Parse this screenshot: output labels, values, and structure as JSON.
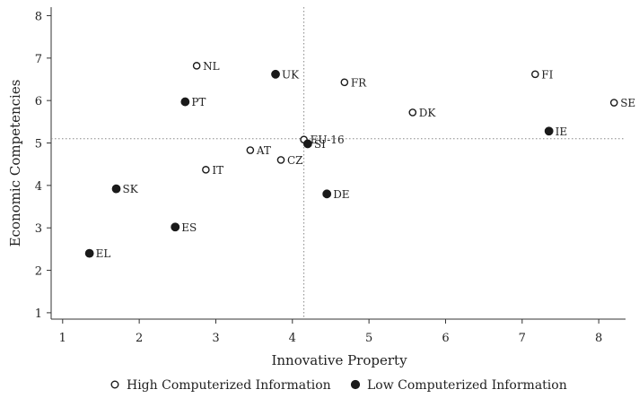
{
  "chart_data": {
    "type": "scatter",
    "title": "",
    "xlabel": "Innovative Property",
    "ylabel": "Economic Competencies",
    "xlim": [
      0.85,
      8.35
    ],
    "ylim": [
      0.85,
      8.2
    ],
    "xticks": [
      1,
      2,
      3,
      4,
      5,
      6,
      7,
      8
    ],
    "yticks": [
      1,
      2,
      3,
      4,
      5,
      6,
      7,
      8
    ],
    "grid": false,
    "reference_lines": {
      "x": 4.15,
      "y": 5.1
    },
    "legend_position": "bottom",
    "series": [
      {
        "name": "High Computerized Information",
        "marker": "hollow-circle",
        "color": "#1a1a1a",
        "points": [
          {
            "label": "NL",
            "x": 2.75,
            "y": 6.82
          },
          {
            "label": "FR",
            "x": 4.68,
            "y": 6.43
          },
          {
            "label": "FI",
            "x": 7.17,
            "y": 6.62
          },
          {
            "label": "SE",
            "x": 8.2,
            "y": 5.95
          },
          {
            "label": "DK",
            "x": 5.57,
            "y": 5.72
          },
          {
            "label": "EU-16",
            "x": 4.15,
            "y": 5.08
          },
          {
            "label": "AT",
            "x": 3.45,
            "y": 4.83
          },
          {
            "label": "CZ",
            "x": 3.85,
            "y": 4.6
          },
          {
            "label": "IT",
            "x": 2.87,
            "y": 4.37
          }
        ]
      },
      {
        "name": "Low Computerized Information",
        "marker": "filled-circle",
        "color": "#1a1a1a",
        "points": [
          {
            "label": "UK",
            "x": 3.78,
            "y": 6.62
          },
          {
            "label": "PT",
            "x": 2.6,
            "y": 5.97
          },
          {
            "label": "IE",
            "x": 7.35,
            "y": 5.28
          },
          {
            "label": "SI",
            "x": 4.2,
            "y": 4.98
          },
          {
            "label": "DE",
            "x": 4.45,
            "y": 3.8
          },
          {
            "label": "SK",
            "x": 1.7,
            "y": 3.92
          },
          {
            "label": "ES",
            "x": 2.47,
            "y": 3.02
          },
          {
            "label": "EL",
            "x": 1.35,
            "y": 2.4
          }
        ]
      }
    ]
  }
}
